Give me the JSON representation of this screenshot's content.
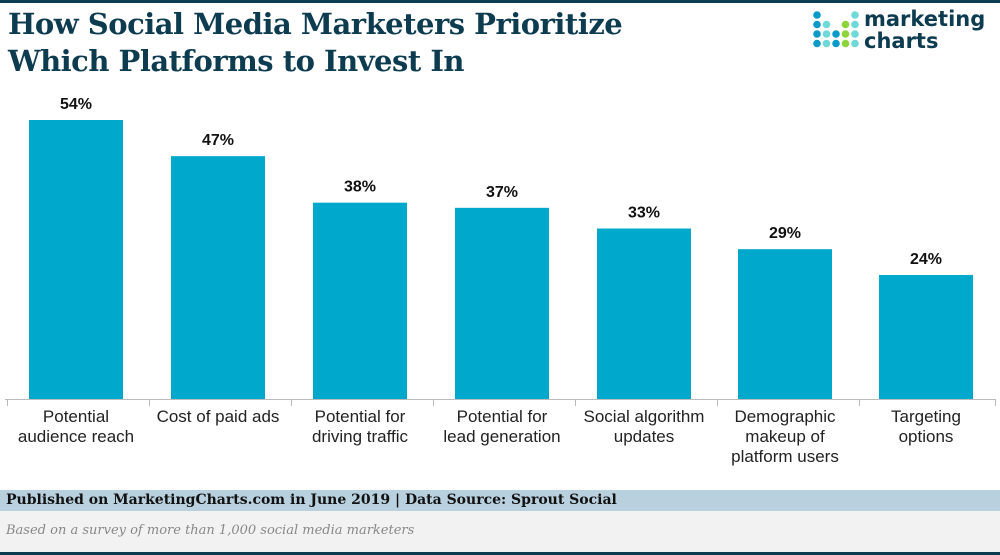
{
  "title_lines": [
    "How Social Media Marketers Prioritize",
    "Which Platforms to Invest In"
  ],
  "logo": {
    "line1": "marketing",
    "line2": "charts"
  },
  "chart_data": {
    "type": "bar",
    "title": "How Social Media Marketers Prioritize Which Platforms to Invest In",
    "categories": [
      [
        "Potential",
        "audience reach"
      ],
      [
        "Cost of paid ads"
      ],
      [
        "Potential for",
        "driving traffic"
      ],
      [
        "Potential for",
        "lead generation"
      ],
      [
        "Social algorithm",
        "updates"
      ],
      [
        "Demographic",
        "makeup of",
        "platform users"
      ],
      [
        "Targeting",
        "options"
      ]
    ],
    "values": [
      54,
      47,
      38,
      37,
      33,
      29,
      24
    ],
    "value_labels": [
      "54%",
      "47%",
      "38%",
      "37%",
      "33%",
      "29%",
      "24%"
    ],
    "ylim": [
      0,
      54
    ],
    "grid": false,
    "bar_color": "#00a8cc"
  },
  "footer": {
    "published": "Published on MarketingCharts.com in June 2019 | Data Source: Sprout Social",
    "note": "Based on a survey of more than 1,000 social media marketers"
  }
}
